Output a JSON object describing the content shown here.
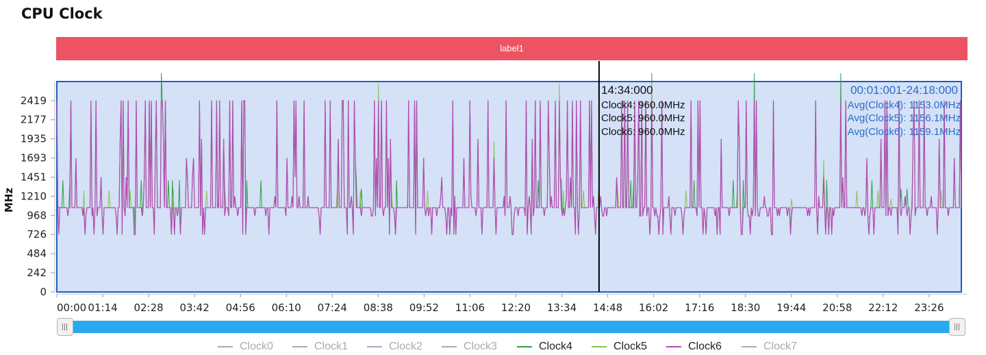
{
  "page": {
    "title": "CPU Clock"
  },
  "band": {
    "label": "label1"
  },
  "colors": {
    "band": "#ec5464",
    "plot_background": "#d4e1f7",
    "plot_border": "#1a5fc4",
    "info_text": "#2b6cc8",
    "cursor": "#000000",
    "scrollbar": "#2ba9f0"
  },
  "tooltip": {
    "time": "14:34:000",
    "lines": [
      "Clock4: 960.0MHz",
      "Clock5: 960.0MHz",
      "Clock6: 960.0MHz"
    ]
  },
  "range_info": {
    "range": "00:01:001-24:18:000",
    "lines": [
      "Avg(Clock4): 1153.0MHz",
      "Avg(Clock5): 1156.1MHz",
      "Avg(Clock6): 1159.1MHz"
    ]
  },
  "legend": [
    {
      "name": "Clock0",
      "color": "#a9a9c0",
      "active": false
    },
    {
      "name": "Clock1",
      "color": "#a9a9c0",
      "active": false
    },
    {
      "name": "Clock2",
      "color": "#a9a9c0",
      "active": false
    },
    {
      "name": "Clock3",
      "color": "#a9a9c0",
      "active": false
    },
    {
      "name": "Clock4",
      "color": "#2ea043",
      "active": true
    },
    {
      "name": "Clock5",
      "color": "#8bc34a",
      "active": true
    },
    {
      "name": "Clock6",
      "color": "#b349b3",
      "active": true
    },
    {
      "name": "Clock7",
      "color": "#a9a9c0",
      "active": false
    }
  ],
  "chart_data": {
    "type": "line",
    "ylabel": "MHz",
    "yticks": [
      0,
      242,
      484,
      726,
      968,
      1210,
      1451,
      1693,
      1935,
      2177,
      2419
    ],
    "ylim": [
      0,
      2660
    ],
    "xticks": [
      "00:00",
      "01:14",
      "02:28",
      "03:42",
      "04:56",
      "06:10",
      "07:24",
      "08:38",
      "09:52",
      "11:06",
      "12:20",
      "13:34",
      "14:48",
      "16:02",
      "17:16",
      "18:30",
      "19:44",
      "20:58",
      "22:12",
      "23:26"
    ],
    "x_unit": "minutes",
    "xlim": [
      0,
      1458
    ],
    "cursor_x": 874,
    "selection": [
      1,
      1458
    ],
    "series": [
      {
        "name": "Clock6",
        "color": "#b349b3",
        "levels": [
          726,
          1066,
          1210,
          2419,
          1066,
          1066,
          2419,
          726,
          1066,
          960,
          726,
          960
        ]
      },
      {
        "name": "Clock4",
        "color": "#2ea043",
        "levels": [
          1066,
          1066,
          1210,
          1066
        ]
      },
      {
        "name": "Clock5",
        "color": "#8bc34a",
        "levels": [
          1066,
          1210,
          1066
        ]
      }
    ]
  }
}
